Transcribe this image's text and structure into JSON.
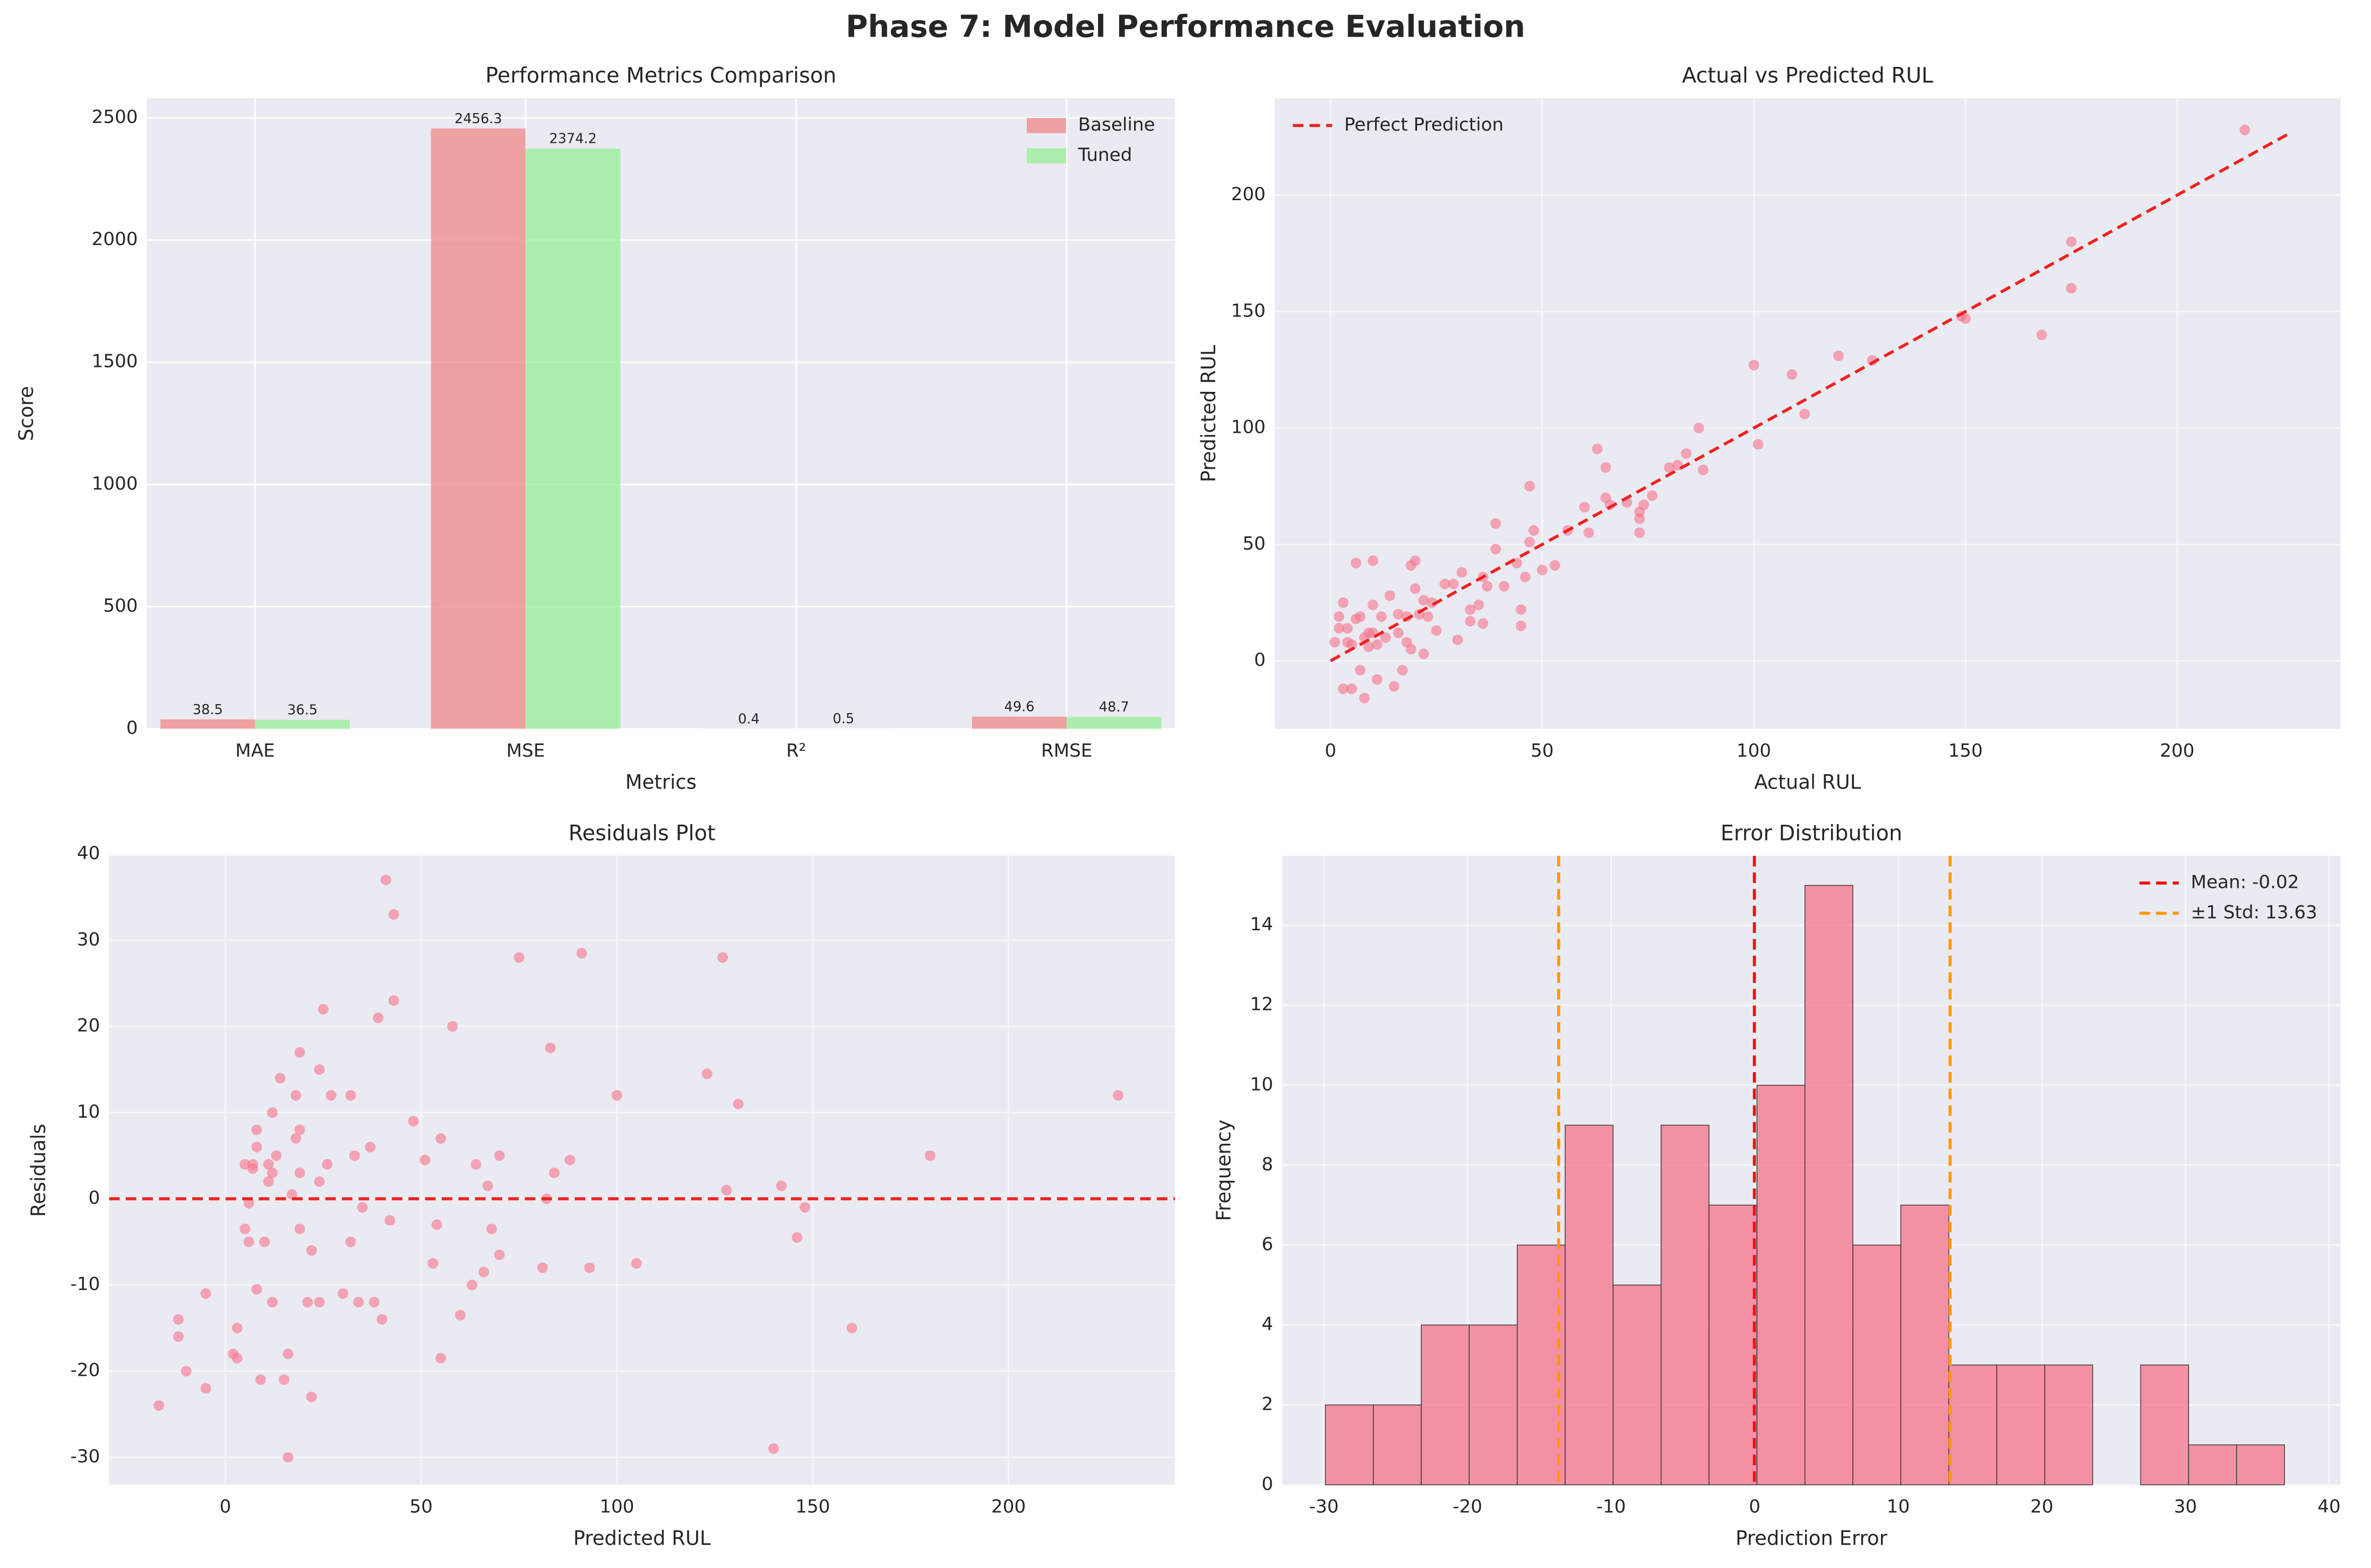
{
  "title": "Phase 7: Model Performance Evaluation",
  "chart_data": [
    {
      "type": "bar",
      "title": "Performance Metrics Comparison",
      "x_label": "Metrics",
      "y_label": "Score",
      "categories": [
        "MAE",
        "MSE",
        "R²",
        "RMSE"
      ],
      "series": [
        {
          "name": "Baseline",
          "color": "#f08080",
          "values": [
            38.5,
            2456.3,
            0.4,
            49.6
          ]
        },
        {
          "name": "Tuned",
          "color": "#90ee90",
          "values": [
            36.5,
            2374.2,
            0.5,
            48.7
          ]
        }
      ],
      "ylim": [
        0,
        2580
      ],
      "yticks": [
        0,
        500,
        1000,
        1500,
        2000,
        2500
      ],
      "grid": true,
      "legend": "upper right"
    },
    {
      "type": "scatter",
      "title": "Actual vs Predicted RUL",
      "x_label": "Actual RUL",
      "y_label": "Predicted RUL",
      "color": "#f77189",
      "x": [
        1,
        2,
        2,
        3,
        3,
        4,
        4,
        5,
        5,
        6,
        6,
        7,
        7,
        8,
        8,
        9,
        9,
        10,
        10,
        10,
        11,
        11,
        12,
        13,
        14,
        15,
        16,
        16,
        17,
        18,
        18,
        19,
        19,
        20,
        20,
        21,
        22,
        22,
        23,
        24,
        25,
        27,
        29,
        30,
        31,
        33,
        33,
        35,
        36,
        36,
        37,
        39,
        39,
        41,
        44,
        45,
        45,
        46,
        47,
        47,
        48,
        50,
        53,
        56,
        60,
        61,
        63,
        65,
        65,
        66,
        70,
        73,
        73,
        73,
        74,
        76,
        80,
        82,
        84,
        87,
        88,
        100,
        101,
        109,
        112,
        120,
        128,
        149,
        150,
        168,
        175,
        175,
        216
      ],
      "values": [
        8,
        14,
        19,
        -12,
        25,
        8,
        14,
        7,
        -12,
        42,
        18,
        -4,
        19,
        -16,
        10,
        12,
        6,
        43,
        24,
        12,
        -8,
        7,
        19,
        10,
        28,
        -11,
        12,
        20,
        -4,
        19,
        8,
        41,
        5,
        43,
        31,
        20,
        3,
        26,
        19,
        25,
        13,
        33,
        33,
        9,
        38,
        17,
        22,
        24,
        36,
        16,
        32,
        59,
        48,
        32,
        42,
        15,
        22,
        36,
        75,
        51,
        56,
        39,
        41,
        56,
        66,
        55,
        91,
        83,
        70,
        67,
        68,
        61,
        64,
        55,
        67,
        71,
        83,
        84,
        89,
        100,
        82,
        127,
        93,
        123,
        106,
        131,
        129,
        148,
        147,
        140,
        160,
        180,
        228
      ],
      "reference_line": {
        "name": "Perfect Prediction",
        "color": "#ee2222",
        "x": [
          0,
          227
        ],
        "values": [
          0,
          227
        ]
      },
      "xlim": [
        -13.2,
        238.6
      ],
      "ylim": [
        -29.2,
        241.6
      ],
      "xticks": [
        0,
        50,
        100,
        150,
        200
      ],
      "yticks": [
        0,
        50,
        100,
        150,
        200
      ],
      "grid": true,
      "legend": "upper left"
    },
    {
      "type": "scatter",
      "title": "Residuals Plot",
      "x_label": "Predicted RUL",
      "y_label": "Residuals",
      "color": "#f77189",
      "x": [
        -17,
        -12,
        -12,
        -10,
        -5,
        -5,
        2,
        3,
        3,
        5,
        5,
        6,
        6,
        7,
        7,
        8,
        8,
        8,
        9,
        10,
        11,
        11,
        12,
        12,
        12,
        13,
        14,
        15,
        16,
        16,
        17,
        18,
        18,
        19,
        19,
        19,
        19,
        21,
        22,
        22,
        24,
        24,
        24,
        25,
        26,
        27,
        30,
        32,
        32,
        33,
        34,
        35,
        37,
        38,
        39,
        40,
        41,
        42,
        43,
        43,
        48,
        51,
        53,
        54,
        55,
        55,
        58,
        60,
        63,
        64,
        66,
        67,
        68,
        70,
        70,
        75,
        81,
        82,
        83,
        84,
        88,
        91,
        93,
        100,
        105,
        123,
        127,
        128,
        131,
        140,
        142,
        146,
        148,
        160,
        180,
        228
      ],
      "values": [
        -24,
        -14,
        -16,
        -20,
        -11,
        -22,
        -18,
        -18.5,
        -15,
        -3.5,
        4,
        -5,
        -0.5,
        4,
        3.5,
        -10.5,
        8,
        6,
        -21,
        -5,
        2,
        4,
        3,
        10,
        -12,
        5,
        14,
        -21,
        -30,
        -18,
        0.5,
        12,
        7,
        17,
        -3.5,
        8,
        3,
        -12,
        -23,
        -6,
        -12,
        15,
        2,
        22,
        4,
        12,
        -11,
        12,
        -5,
        5,
        -12,
        -1,
        6,
        -12,
        21,
        -14,
        37,
        -2.5,
        33,
        23,
        9,
        4.5,
        -7.5,
        -3,
        -18.5,
        7,
        20,
        -13.5,
        -10,
        4,
        -8.5,
        1.5,
        -3.5,
        5,
        -6.5,
        28,
        -8,
        0,
        17.5,
        3,
        4.5,
        28.5,
        -8,
        12,
        -7.5,
        14.5,
        28,
        1,
        11,
        -29,
        1.5,
        -4.5,
        -1,
        -15,
        5,
        12
      ],
      "hlines": [
        {
          "color": "#ee2222",
          "values": [
            0
          ]
        }
      ],
      "xlim": [
        -29.7,
        242.5
      ],
      "ylim": [
        -33.2,
        39.8
      ],
      "xticks": [
        0,
        50,
        100,
        150,
        200
      ],
      "yticks": [
        -30,
        -20,
        -10,
        0,
        10,
        20,
        30,
        40
      ],
      "grid": true
    },
    {
      "type": "histogram",
      "title": "Error Distribution",
      "x_label": "Prediction Error",
      "y_label": "Frequency",
      "color": "#f77189",
      "bins": [
        -29.9,
        -26.56,
        -23.22,
        -19.88,
        -16.54,
        -13.2,
        -9.86,
        -6.52,
        -3.18,
        0.16,
        3.5,
        6.84,
        10.18,
        13.52,
        16.86,
        20.2,
        23.54,
        26.88,
        30.22,
        33.56,
        36.9
      ],
      "counts": [
        2,
        2,
        4,
        4,
        6,
        9,
        5,
        9,
        7,
        10,
        15,
        6,
        7,
        3,
        3,
        3,
        0,
        3,
        1,
        1
      ],
      "vlines": [
        {
          "name": "Mean: -0.02",
          "color": "#ee1111",
          "values": [
            -0.02
          ]
        },
        {
          "name": "±1 Std: 13.63",
          "color": "#ff9900",
          "values": [
            -13.65,
            13.61
          ]
        }
      ],
      "xlim": [
        -32.9,
        40.8
      ],
      "ylim": [
        0,
        15.74
      ],
      "xticks": [
        -30,
        -20,
        -10,
        0,
        10,
        20,
        30,
        40
      ],
      "yticks": [
        0,
        2,
        4,
        6,
        8,
        10,
        12,
        14
      ],
      "grid": true,
      "legend": "upper right"
    }
  ]
}
